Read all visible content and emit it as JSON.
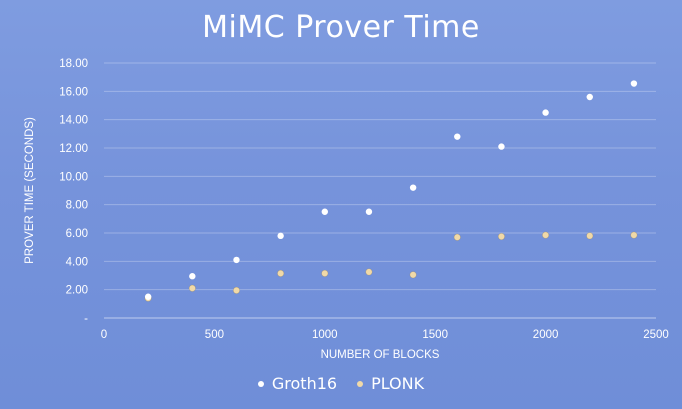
{
  "chart_data": {
    "type": "scatter",
    "title": "MiMC Prover Time",
    "xlabel": "NUMBER OF BLOCKS",
    "ylabel": "PROVER TIME (SECONDS)",
    "xlim": [
      0,
      2500
    ],
    "ylim": [
      0,
      18
    ],
    "x_ticks": [
      0,
      500,
      1000,
      1500,
      2000,
      2500
    ],
    "x_tick_labels": [
      "0",
      "500",
      "1000",
      "1500",
      "2000",
      "2500"
    ],
    "y_ticks": [
      0,
      2,
      4,
      6,
      8,
      10,
      12,
      14,
      16,
      18
    ],
    "y_tick_labels": [
      "-",
      "2.00",
      "4.00",
      "6.00",
      "8.00",
      "10.00",
      "12.00",
      "14.00",
      "16.00",
      "18.00"
    ],
    "grid": "horizontal",
    "legend_position": "bottom",
    "series": [
      {
        "name": "Groth16",
        "color": "#ffffff",
        "x": [
          200,
          400,
          600,
          800,
          1000,
          1200,
          1400,
          1600,
          1800,
          2000,
          2200,
          2400
        ],
        "y": [
          1.5,
          2.95,
          4.1,
          5.8,
          7.5,
          7.5,
          9.2,
          12.8,
          12.1,
          14.5,
          15.6,
          16.55
        ]
      },
      {
        "name": "PLONK",
        "color": "#f0d9a8",
        "x": [
          200,
          400,
          600,
          800,
          1000,
          1200,
          1400,
          1600,
          1800,
          2000,
          2200,
          2400
        ],
        "y": [
          1.4,
          2.1,
          1.95,
          3.15,
          3.15,
          3.25,
          3.05,
          5.7,
          5.75,
          5.85,
          5.8,
          5.85
        ]
      }
    ]
  }
}
